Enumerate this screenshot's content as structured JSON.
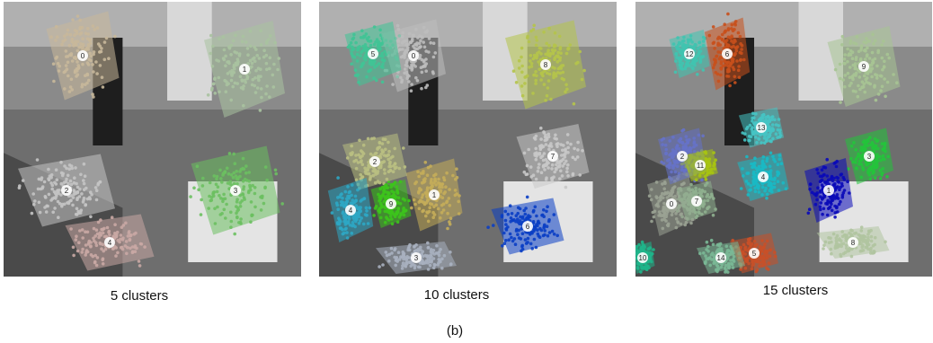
{
  "figure_label": "(b)",
  "panels": [
    {
      "caption": "5 clusters",
      "clusters": [
        {
          "id": "0",
          "color": "#c8b89a"
        },
        {
          "id": "1",
          "color": "#a9c2a0"
        },
        {
          "id": "2",
          "color": "#c4c4c4"
        },
        {
          "id": "3",
          "color": "#6cc060"
        },
        {
          "id": "4",
          "color": "#c9a8a4"
        }
      ]
    },
    {
      "caption": "10 clusters",
      "clusters": [
        {
          "id": "0",
          "color": "#bdbdbd"
        },
        {
          "id": "1",
          "color": "#c4ad5a"
        },
        {
          "id": "2",
          "color": "#b9bf82"
        },
        {
          "id": "3",
          "color": "#a8b0bf"
        },
        {
          "id": "4",
          "color": "#2ea7c4"
        },
        {
          "id": "5",
          "color": "#40c495"
        },
        {
          "id": "6",
          "color": "#0a3ec4"
        },
        {
          "id": "7",
          "color": "#c8c8c8"
        },
        {
          "id": "8",
          "color": "#b5c44a"
        },
        {
          "id": "9",
          "color": "#3cc41c"
        }
      ]
    },
    {
      "caption": "15 clusters",
      "clusters": [
        {
          "id": "0",
          "color": "#9aa394"
        },
        {
          "id": "1",
          "color": "#0a0ab8"
        },
        {
          "id": "2",
          "color": "#6672c8"
        },
        {
          "id": "3",
          "color": "#23c43b"
        },
        {
          "id": "4",
          "color": "#1ab9c4"
        },
        {
          "id": "5",
          "color": "#c85028"
        },
        {
          "id": "6",
          "color": "#c8501c"
        },
        {
          "id": "7",
          "color": "#8fb08f"
        },
        {
          "id": "8",
          "color": "#b0c4a0"
        },
        {
          "id": "9",
          "color": "#a7c493"
        },
        {
          "id": "10",
          "color": "#1fb58a"
        },
        {
          "id": "11",
          "color": "#a8c411"
        },
        {
          "id": "12",
          "color": "#40c4b0"
        },
        {
          "id": "13",
          "color": "#46c4c4"
        },
        {
          "id": "14",
          "color": "#7ab896"
        }
      ]
    }
  ]
}
